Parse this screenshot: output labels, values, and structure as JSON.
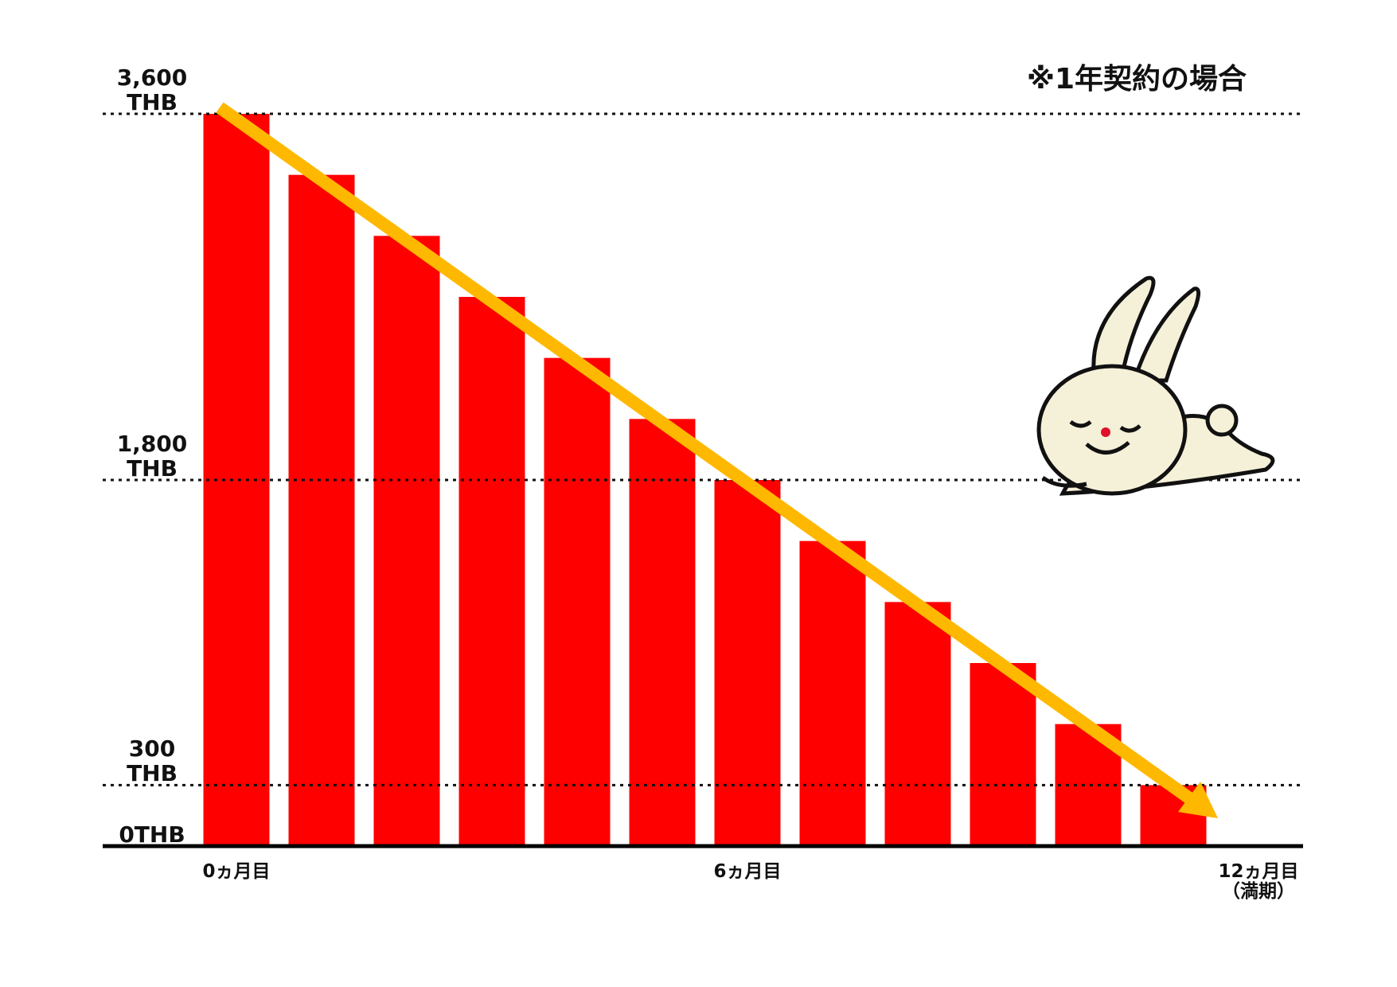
{
  "chart_data": {
    "type": "bar",
    "annotation": "※1年契約の場合",
    "categories": [
      "0ヵ月目",
      null,
      null,
      null,
      null,
      null,
      "6ヵ月目",
      null,
      null,
      null,
      null,
      null,
      "12ヵ月目\n（満期）"
    ],
    "values": [
      3600,
      3300,
      3000,
      2700,
      2400,
      2100,
      1800,
      1500,
      1200,
      900,
      600,
      300,
      0
    ],
    "color": "#ff0000",
    "ylim": [
      0,
      3600
    ],
    "yticks": [
      {
        "value": 0,
        "label": "0THB"
      },
      {
        "value": 300,
        "label": "300\nTHB"
      },
      {
        "value": 1800,
        "label": "1,800\nTHB"
      },
      {
        "value": 3600,
        "label": "3,600\nTHB"
      }
    ],
    "grid": true
  }
}
